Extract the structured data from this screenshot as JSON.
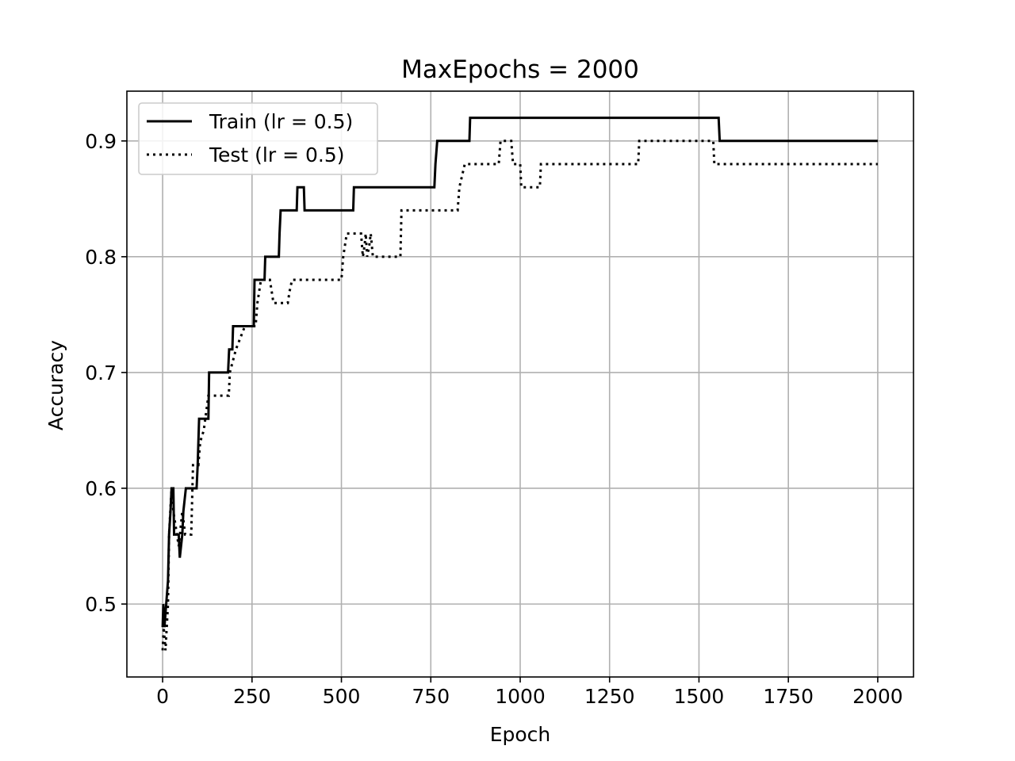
{
  "chart_data": {
    "type": "line",
    "title": "MaxEpochs = 2000",
    "xlabel": "Epoch",
    "ylabel": "Accuracy",
    "xlim": [
      -100,
      2100
    ],
    "ylim": [
      0.437,
      0.943
    ],
    "xticks": [
      0,
      250,
      500,
      750,
      1000,
      1250,
      1500,
      1750,
      2000
    ],
    "yticks": [
      0.5,
      0.6,
      0.7,
      0.8,
      0.9
    ],
    "grid": true,
    "legend_position": "upper-left",
    "series": [
      {
        "name": "Train (lr = 0.5)",
        "color": "#000000",
        "linestyle": "solid",
        "points": [
          [
            0,
            0.48
          ],
          [
            2,
            0.5
          ],
          [
            5,
            0.48
          ],
          [
            10,
            0.5
          ],
          [
            15,
            0.52
          ],
          [
            18,
            0.56
          ],
          [
            22,
            0.58
          ],
          [
            25,
            0.6
          ],
          [
            30,
            0.6
          ],
          [
            32,
            0.56
          ],
          [
            45,
            0.56
          ],
          [
            48,
            0.54
          ],
          [
            55,
            0.56
          ],
          [
            58,
            0.58
          ],
          [
            65,
            0.6
          ],
          [
            95,
            0.6
          ],
          [
            98,
            0.62
          ],
          [
            102,
            0.66
          ],
          [
            128,
            0.66
          ],
          [
            130,
            0.7
          ],
          [
            183,
            0.7
          ],
          [
            186,
            0.72
          ],
          [
            195,
            0.72
          ],
          [
            197,
            0.74
          ],
          [
            255,
            0.74
          ],
          [
            257,
            0.78
          ],
          [
            285,
            0.78
          ],
          [
            287,
            0.8
          ],
          [
            325,
            0.8
          ],
          [
            327,
            0.82
          ],
          [
            330,
            0.84
          ],
          [
            375,
            0.84
          ],
          [
            377,
            0.86
          ],
          [
            395,
            0.86
          ],
          [
            397,
            0.84
          ],
          [
            533,
            0.84
          ],
          [
            535,
            0.86
          ],
          [
            760,
            0.86
          ],
          [
            763,
            0.88
          ],
          [
            768,
            0.9
          ],
          [
            858,
            0.9
          ],
          [
            860,
            0.92
          ],
          [
            1555,
            0.92
          ],
          [
            1558,
            0.9
          ],
          [
            2000,
            0.9
          ]
        ]
      },
      {
        "name": "Test (lr = 0.5)",
        "color": "#000000",
        "linestyle": "dotted",
        "points": [
          [
            0,
            0.46
          ],
          [
            3,
            0.48
          ],
          [
            8,
            0.46
          ],
          [
            15,
            0.5
          ],
          [
            18,
            0.56
          ],
          [
            25,
            0.6
          ],
          [
            30,
            0.58
          ],
          [
            40,
            0.56
          ],
          [
            45,
            0.55
          ],
          [
            55,
            0.58
          ],
          [
            63,
            0.56
          ],
          [
            80,
            0.56
          ],
          [
            85,
            0.62
          ],
          [
            100,
            0.62
          ],
          [
            105,
            0.64
          ],
          [
            115,
            0.65
          ],
          [
            128,
            0.68
          ],
          [
            185,
            0.68
          ],
          [
            188,
            0.7
          ],
          [
            205,
            0.72
          ],
          [
            230,
            0.74
          ],
          [
            260,
            0.74
          ],
          [
            265,
            0.76
          ],
          [
            275,
            0.78
          ],
          [
            300,
            0.78
          ],
          [
            305,
            0.77
          ],
          [
            310,
            0.76
          ],
          [
            350,
            0.76
          ],
          [
            355,
            0.77
          ],
          [
            362,
            0.78
          ],
          [
            500,
            0.78
          ],
          [
            505,
            0.8
          ],
          [
            515,
            0.82
          ],
          [
            555,
            0.82
          ],
          [
            560,
            0.8
          ],
          [
            565,
            0.81
          ],
          [
            568,
            0.82
          ],
          [
            572,
            0.8
          ],
          [
            578,
            0.81
          ],
          [
            582,
            0.82
          ],
          [
            588,
            0.8
          ],
          [
            665,
            0.8
          ],
          [
            668,
            0.84
          ],
          [
            825,
            0.84
          ],
          [
            830,
            0.86
          ],
          [
            845,
            0.88
          ],
          [
            940,
            0.88
          ],
          [
            945,
            0.9
          ],
          [
            975,
            0.9
          ],
          [
            980,
            0.88
          ],
          [
            1000,
            0.88
          ],
          [
            1003,
            0.86
          ],
          [
            1055,
            0.86
          ],
          [
            1058,
            0.88
          ],
          [
            1330,
            0.88
          ],
          [
            1333,
            0.9
          ],
          [
            1540,
            0.9
          ],
          [
            1543,
            0.88
          ],
          [
            2000,
            0.88
          ]
        ]
      }
    ]
  }
}
